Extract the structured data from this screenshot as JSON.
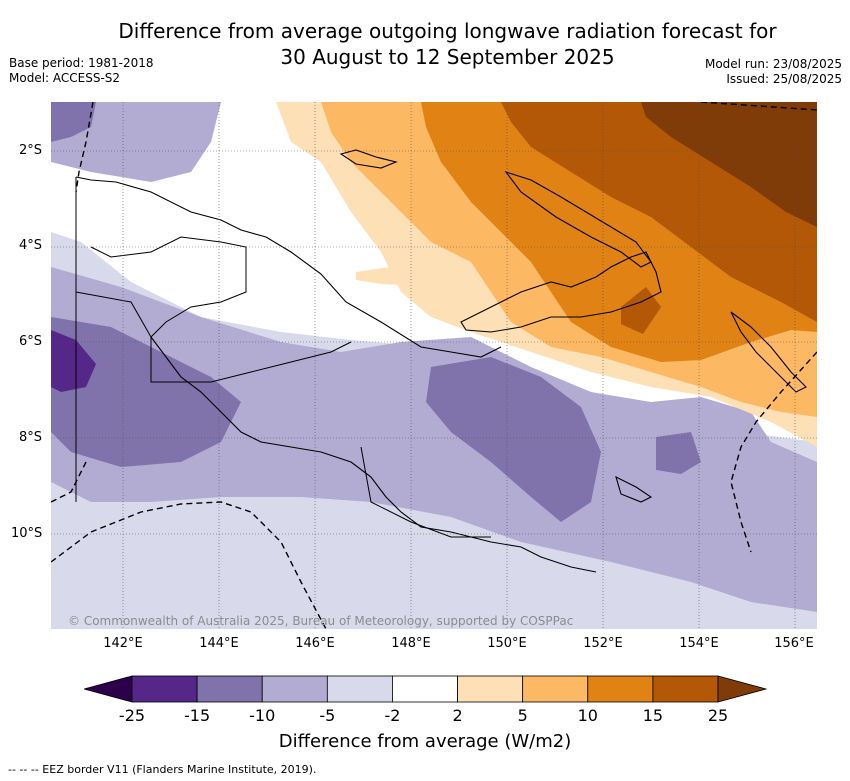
{
  "title_line1": "Difference from average outgoing longwave radiation forecast for",
  "title_line2": "30 August to 12 September 2025",
  "base_period": "Base period: 1981-2018",
  "model": "Model: ACCESS-S2",
  "model_run": "Model run: 23/08/2025",
  "issued": "Issued: 25/08/2025",
  "lat_labels": [
    "2°S",
    "4°S",
    "6°S",
    "8°S",
    "10°S"
  ],
  "lon_labels": [
    "142°E",
    "144°E",
    "146°E",
    "148°E",
    "150°E",
    "152°E",
    "154°E",
    "156°E"
  ],
  "copyright": "© Commonwealth of Australia 2025, Bureau of Meteorology, supported by COSPPac",
  "colorbar": {
    "label": "Difference from average (W/m2)",
    "ticks": [
      "-25",
      "-15",
      "-10",
      "-5",
      "-2",
      "2",
      "5",
      "10",
      "15",
      "25"
    ],
    "colors": [
      "#2d004b",
      "#542788",
      "#8073ac",
      "#b2abd2",
      "#d8daeb",
      "#ffffff",
      "#fee0b6",
      "#fdb863",
      "#e08214",
      "#b35806",
      "#7f3b08"
    ]
  },
  "footnote": "--  --  -- EEZ border V11 (Flanders Marine Institute, 2019)."
}
